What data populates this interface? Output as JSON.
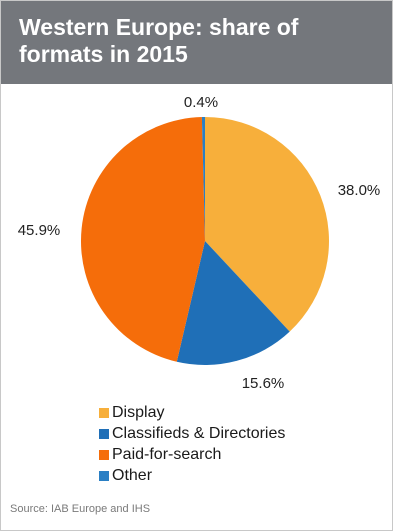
{
  "title_line1": "Western Europe: share of",
  "title_line2": "formats in 2015",
  "source": "Source: IAB Europe and IHS",
  "chart_data": {
    "type": "pie",
    "title": "Western Europe: share of formats in 2015",
    "categories": [
      "Display",
      "Classifieds & Directories",
      "Paid-for-search",
      "Other"
    ],
    "values": [
      38.0,
      15.6,
      45.9,
      0.4
    ],
    "labels": [
      "38.0%",
      "15.6%",
      "45.9%",
      "0.4%"
    ],
    "colors": [
      "#f7af3b",
      "#1f6fb7",
      "#f56d0a",
      "#2a7fc4"
    ],
    "legend_position": "bottom"
  }
}
